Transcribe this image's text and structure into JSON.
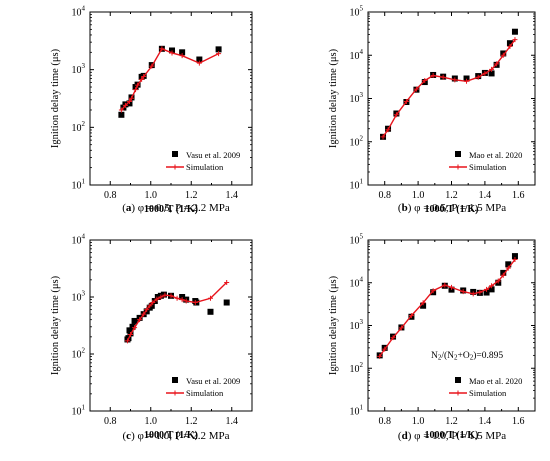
{
  "colors": {
    "axis": "#000000",
    "marker": "#000000",
    "simulation": "#e8141c"
  },
  "chart_data": [
    {
      "type": "scatter",
      "caption": {
        "letter": "(a)",
        "text": " φ = 0.5, P = 2.2 MPa"
      },
      "xlabel": "1000/T (1/K)",
      "ylabel": "Ignition delay time (μs)",
      "xlim": [
        0.7,
        1.5
      ],
      "xticks": [
        0.8,
        1.0,
        1.2,
        1.4
      ],
      "xtick_labels": [
        "0.8",
        "1.0",
        "1.2",
        "1.4"
      ],
      "yscale": "log",
      "ylim": [
        10,
        10000
      ],
      "ytick_exponents": [
        1,
        2,
        3,
        4
      ],
      "legend_position": "bottom-right",
      "annotation": null,
      "series": [
        {
          "name": "Vasu et al. 2009",
          "kind": "scatter",
          "x": [
            0.855,
            0.865,
            0.875,
            0.895,
            0.905,
            0.925,
            0.935,
            0.955,
            0.965,
            1.005,
            1.055,
            1.105,
            1.155,
            1.24,
            1.335
          ],
          "y": [
            165,
            220,
            250,
            260,
            330,
            500,
            550,
            750,
            780,
            1200,
            2300,
            2150,
            2000,
            1500,
            2250
          ]
        },
        {
          "name": "Simulation",
          "kind": "line",
          "x": [
            0.855,
            0.875,
            0.895,
            0.905,
            0.925,
            0.935,
            0.955,
            0.965,
            1.005,
            1.055,
            1.105,
            1.155,
            1.24,
            1.335
          ],
          "y": [
            200,
            240,
            280,
            320,
            450,
            540,
            680,
            760,
            1150,
            2300,
            1950,
            1750,
            1300,
            1900
          ]
        }
      ]
    },
    {
      "type": "scatter",
      "caption": {
        "letter": "(b)",
        "text": " φ = 0.5, P = 1.5 MPa"
      },
      "xlabel": "1000/T (1/K)",
      "ylabel": "Ignition delay time (μs)",
      "xlim": [
        0.7,
        1.7
      ],
      "xticks": [
        0.8,
        1.0,
        1.2,
        1.4,
        1.6
      ],
      "xtick_labels": [
        "0.8",
        "1.0",
        "1.2",
        "1.4",
        "1.6"
      ],
      "yscale": "log",
      "ylim": [
        10,
        100000
      ],
      "ytick_exponents": [
        1,
        2,
        3,
        4,
        5
      ],
      "legend_position": "bottom-right",
      "annotation": null,
      "series": [
        {
          "name": "Mao et al. 2020",
          "kind": "scatter",
          "x": [
            0.79,
            0.82,
            0.87,
            0.93,
            0.99,
            1.04,
            1.09,
            1.15,
            1.22,
            1.29,
            1.36,
            1.4,
            1.44,
            1.47,
            1.51,
            1.55,
            1.58
          ],
          "y": [
            130,
            200,
            450,
            830,
            1600,
            2400,
            3500,
            3200,
            2900,
            2900,
            3300,
            3900,
            3800,
            6000,
            11000,
            19000,
            35000
          ]
        },
        {
          "name": "Simulation",
          "kind": "line",
          "x": [
            0.79,
            0.82,
            0.87,
            0.93,
            0.99,
            1.04,
            1.09,
            1.15,
            1.22,
            1.29,
            1.36,
            1.4,
            1.44,
            1.47,
            1.51,
            1.55,
            1.58
          ],
          "y": [
            130,
            190,
            420,
            850,
            1650,
            2600,
            3400,
            3100,
            2700,
            2500,
            3100,
            3800,
            4700,
            6300,
            10000,
            16000,
            23000
          ]
        }
      ]
    },
    {
      "type": "scatter",
      "caption": {
        "letter": "(c)",
        "text": " φ = 1.0, P = 2.2 MPa"
      },
      "xlabel": "1000/T (1/K)",
      "ylabel": "Ignition delay time (μs)",
      "xlim": [
        0.7,
        1.5
      ],
      "xticks": [
        0.8,
        1.0,
        1.2,
        1.4
      ],
      "xtick_labels": [
        "0.8",
        "1.0",
        "1.2",
        "1.4"
      ],
      "yscale": "log",
      "ylim": [
        10,
        10000
      ],
      "ytick_exponents": [
        1,
        2,
        3,
        4
      ],
      "legend_position": "bottom-right",
      "annotation": null,
      "series": [
        {
          "name": "Vasu et al. 2009",
          "kind": "scatter",
          "x": [
            0.885,
            0.89,
            0.895,
            0.9,
            0.91,
            0.92,
            0.945,
            0.965,
            0.98,
            0.995,
            1.005,
            1.02,
            1.035,
            1.05,
            1.065,
            1.1,
            1.155,
            1.175,
            1.22,
            1.225,
            1.295,
            1.375
          ],
          "y": [
            180,
            190,
            260,
            230,
            300,
            380,
            430,
            500,
            560,
            650,
            700,
            850,
            1000,
            1050,
            1100,
            1050,
            1000,
            900,
            850,
            800,
            550,
            800
          ]
        },
        {
          "name": "Simulation",
          "kind": "line",
          "x": [
            0.885,
            0.9,
            0.92,
            0.945,
            0.965,
            0.98,
            0.995,
            1.01,
            1.03,
            1.05,
            1.07,
            1.1,
            1.13,
            1.155,
            1.175,
            1.22,
            1.295,
            1.375
          ],
          "y": [
            170,
            220,
            290,
            400,
            500,
            600,
            700,
            800,
            920,
            1000,
            1080,
            1050,
            950,
            900,
            850,
            800,
            950,
            1800
          ]
        }
      ]
    },
    {
      "type": "scatter",
      "caption": {
        "letter": "(d)",
        "text": " φ = 1.0, P = 1.5 MPa"
      },
      "xlabel": "1000/T (1/K)",
      "ylabel": "Ignition delay time (μs)",
      "xlim": [
        0.7,
        1.7
      ],
      "xticks": [
        0.8,
        1.0,
        1.2,
        1.4,
        1.6
      ],
      "xtick_labels": [
        "0.8",
        "1.0",
        "1.2",
        "1.4",
        "1.6"
      ],
      "yscale": "log",
      "ylim": [
        10,
        100000
      ],
      "ytick_exponents": [
        1,
        2,
        3,
        4,
        5
      ],
      "legend_position": "bottom-right",
      "annotation": {
        "base": "N",
        "sub1": "2",
        "mid1": "/(N",
        "sub2": "2",
        "mid2": "+O",
        "sub3": "2",
        "tail": ")=0.895",
        "dy": "1.5"
      },
      "series": [
        {
          "name": "Mao et al. 2020",
          "kind": "scatter",
          "x": [
            0.77,
            0.8,
            0.85,
            0.9,
            0.96,
            1.03,
            1.09,
            1.16,
            1.2,
            1.27,
            1.33,
            1.37,
            1.41,
            1.44,
            1.48,
            1.51,
            1.54,
            1.58
          ],
          "y": [
            200,
            300,
            550,
            900,
            1600,
            2900,
            6000,
            8500,
            6900,
            6600,
            6100,
            5800,
            5900,
            7000,
            10000,
            17000,
            27000,
            42000
          ]
        },
        {
          "name": "Simulation",
          "kind": "line",
          "x": [
            0.77,
            0.8,
            0.85,
            0.9,
            0.96,
            1.03,
            1.09,
            1.16,
            1.2,
            1.27,
            1.33,
            1.37,
            1.41,
            1.44,
            1.48,
            1.51,
            1.54,
            1.58
          ],
          "y": [
            190,
            280,
            520,
            880,
            1700,
            3400,
            6500,
            8800,
            7800,
            6200,
            5500,
            6000,
            7000,
            8500,
            11000,
            15000,
            22000,
            35000
          ]
        }
      ]
    }
  ]
}
